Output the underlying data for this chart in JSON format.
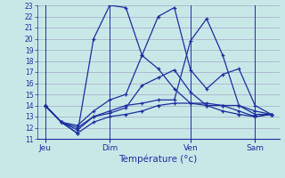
{
  "background_color": "#c8e8e8",
  "grid_color": "#9999bb",
  "line_color": "#1a2e9e",
  "xlabel": "Température (°c)",
  "ylim": [
    11,
    23
  ],
  "yticks": [
    11,
    12,
    13,
    14,
    15,
    16,
    17,
    18,
    19,
    20,
    21,
    22,
    23
  ],
  "xtick_labels": [
    "Jeu",
    "Dim",
    "Ven",
    "Sam"
  ],
  "xtick_positions": [
    0,
    4,
    9,
    13
  ],
  "n_points": 15,
  "series": [
    [
      14.0,
      12.5,
      11.5,
      20.0,
      23.0,
      22.8,
      18.5,
      17.3,
      15.5,
      14.2,
      14.0,
      14.0,
      14.0,
      13.5,
      13.2
    ],
    [
      14.0,
      12.5,
      12.2,
      13.5,
      14.5,
      15.0,
      18.5,
      22.0,
      22.8,
      17.2,
      15.5,
      16.8,
      17.3,
      14.0,
      13.2
    ],
    [
      14.0,
      12.5,
      12.0,
      13.0,
      13.5,
      14.0,
      14.2,
      14.5,
      14.5,
      19.8,
      21.8,
      18.5,
      14.0,
      13.2,
      13.2
    ],
    [
      14.0,
      12.5,
      11.8,
      13.0,
      13.3,
      13.8,
      15.8,
      16.5,
      17.2,
      15.2,
      14.0,
      13.5,
      13.2,
      13.0,
      13.2
    ],
    [
      14.0,
      12.5,
      11.5,
      12.5,
      13.0,
      13.2,
      13.5,
      14.0,
      14.2,
      14.2,
      14.2,
      14.0,
      13.5,
      13.0,
      13.2
    ]
  ]
}
